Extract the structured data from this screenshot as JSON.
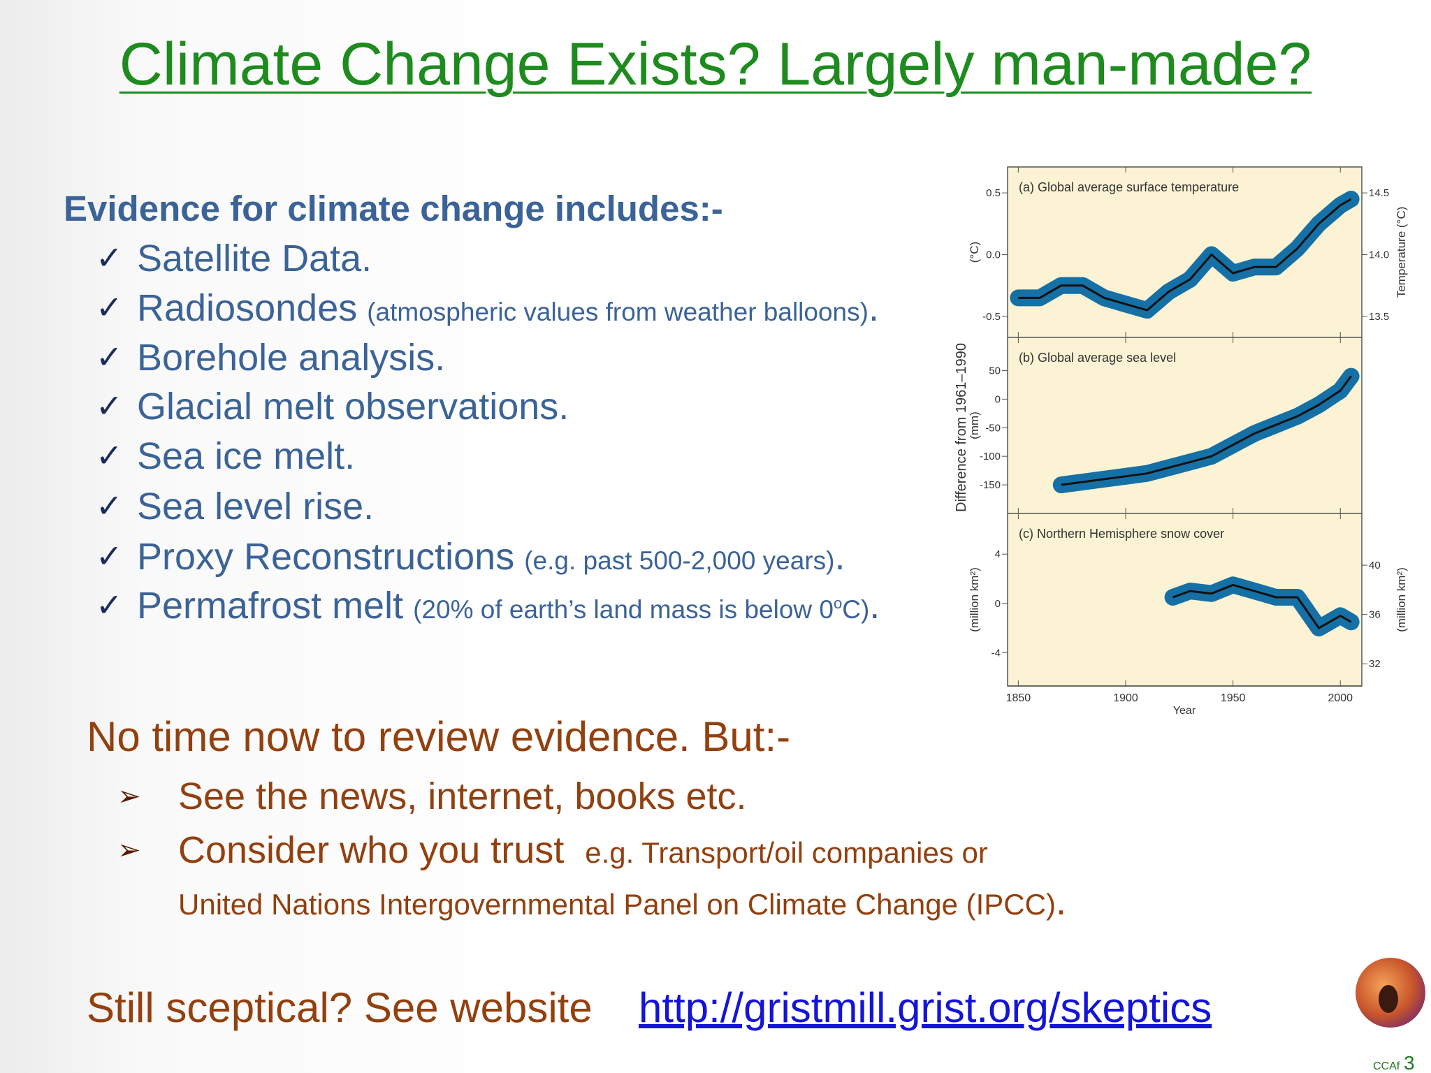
{
  "title": "Climate Change Exists?  Largely man-made?",
  "check_mark": "✓",
  "arrow_mark": "➢",
  "evidence": {
    "heading": "Evidence for climate change includes:-",
    "items": [
      {
        "main": "Satellite Data."
      },
      {
        "main": "Radiosondes",
        "note": "(atmospheric values from weather balloons)",
        "end": "."
      },
      {
        "main": "Borehole analysis."
      },
      {
        "main": "Glacial melt observations."
      },
      {
        "main": "Sea ice melt."
      },
      {
        "main": "Sea level rise."
      },
      {
        "main": "Proxy Reconstructions",
        "note": "(e.g. past 500-2,000 years)",
        "end": "."
      },
      {
        "main": "Permafrost melt",
        "note": "(20% of earth’s land mass is below 0",
        "note_sup": "o",
        "note_end": "C)",
        "end": "."
      }
    ]
  },
  "review": {
    "heading": "No time now to review evidence.  But:-",
    "items": [
      {
        "main": "See the news, internet, books etc."
      },
      {
        "main": "Consider who you trust",
        "note": "e.g. Transport/oil companies or",
        "line2": "United Nations Intergovernmental Panel on Climate Change (IPCC)",
        "end": "."
      }
    ]
  },
  "footer": {
    "text": "Still sceptical?  See website",
    "link": "http://gristmill.grist.org/skeptics",
    "logo_text": "CCAf",
    "page_number": "3"
  },
  "figure": {
    "y_label": "Difference from 1961–1990",
    "x_label": "Year"
  },
  "chart_data": [
    {
      "type": "line",
      "title": "(a) Global average surface temperature",
      "x": [
        1850,
        1860,
        1870,
        1880,
        1890,
        1900,
        1910,
        1920,
        1930,
        1940,
        1950,
        1960,
        1970,
        1980,
        1990,
        2000,
        2005
      ],
      "values": [
        -0.35,
        -0.35,
        -0.25,
        -0.25,
        -0.35,
        -0.4,
        -0.45,
        -0.3,
        -0.2,
        0.0,
        -0.15,
        -0.1,
        -0.1,
        0.05,
        0.25,
        0.4,
        0.45
      ],
      "color": "#1570a6",
      "xlim": [
        1845,
        2010
      ],
      "xticks": [
        1850,
        1900,
        1950,
        2000
      ],
      "ylim": [
        -0.67,
        0.71
      ],
      "yticks": [
        0.5,
        {
          "value": 0,
          "label": "0.0"
        },
        -0.5
      ],
      "y_label": "(°C)",
      "y2lim": [
        13.33,
        14.71
      ],
      "y2ticks": [
        14.5,
        {
          "value": 14,
          "label": "14.0"
        },
        13.5
      ],
      "y2_label": "Temperature (°C)"
    },
    {
      "type": "line",
      "title": "(b) Global average sea level",
      "x": [
        1870,
        1880,
        1890,
        1900,
        1910,
        1920,
        1930,
        1940,
        1950,
        1960,
        1970,
        1980,
        1990,
        2000,
        2005
      ],
      "values": [
        -150,
        -145,
        -140,
        -135,
        -130,
        -120,
        -110,
        -100,
        -80,
        -60,
        -45,
        -30,
        -10,
        15,
        40
      ],
      "color": "#1570a6",
      "xlim": [
        1845,
        2010
      ],
      "xticks": [
        1850,
        1900,
        1950,
        2000
      ],
      "ylim": [
        -200,
        108
      ],
      "yticks": [
        50,
        0,
        -50,
        -100,
        -150
      ],
      "y_label": "(mm)"
    },
    {
      "type": "line",
      "title": "(c) Northern Hemisphere snow cover",
      "x": [
        1922,
        1930,
        1940,
        1950,
        1960,
        1970,
        1980,
        1990,
        2000,
        2005
      ],
      "values": [
        0.5,
        1.0,
        0.8,
        1.5,
        1.0,
        0.5,
        0.5,
        -2.0,
        -1.0,
        -1.5
      ],
      "color": "#1570a6",
      "xlim": [
        1845,
        2010
      ],
      "xticks": [
        1850,
        1900,
        1950,
        2000
      ],
      "ylim": [
        -6.7,
        7.3
      ],
      "yticks": [
        4,
        0,
        -4
      ],
      "y_label": "(million km²)",
      "y2lim": [
        30.2,
        44.2
      ],
      "y2ticks": [
        40,
        36,
        32
      ],
      "y2_label": "(million km²)"
    }
  ]
}
